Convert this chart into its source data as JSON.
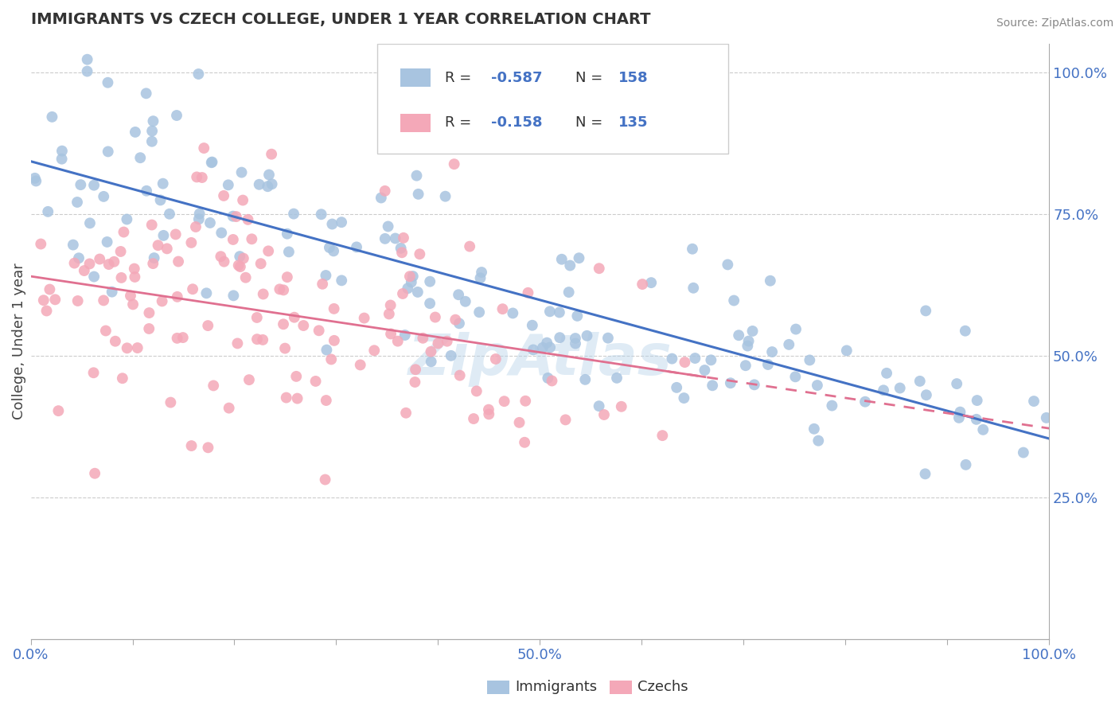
{
  "title": "IMMIGRANTS VS CZECH COLLEGE, UNDER 1 YEAR CORRELATION CHART",
  "source_text": "Source: ZipAtlas.com",
  "ylabel": "College, Under 1 year",
  "xlim": [
    0.0,
    1.0
  ],
  "ylim": [
    0.0,
    1.05
  ],
  "y_ticks_right": [
    0.25,
    0.5,
    0.75,
    1.0
  ],
  "y_tick_labels_right": [
    "25.0%",
    "50.0%",
    "75.0%",
    "100.0%"
  ],
  "legend_r_immigrants": "-0.587",
  "legend_n_immigrants": "158",
  "legend_r_czechs": "-0.158",
  "legend_n_czechs": "135",
  "immigrants_color": "#a8c4e0",
  "czechs_color": "#f4a8b8",
  "immigrants_line_color": "#4472c4",
  "czechs_line_color": "#e07090",
  "r_color": "#4472c4",
  "n_color": "#4472c4",
  "label_color": "#4472c4",
  "background_color": "#ffffff",
  "watermark": "ZipAtlas",
  "imm_seed": 101,
  "czech_seed": 202
}
